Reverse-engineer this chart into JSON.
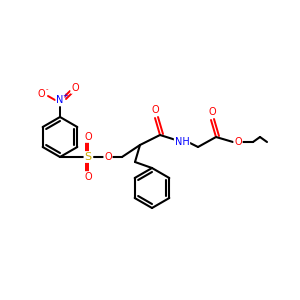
{
  "bg_color": "#ffffff",
  "bond_color": "#000000",
  "atom_colors": {
    "N": "#0000ff",
    "O": "#ff0000",
    "S": "#ccaa00",
    "C": "#000000"
  },
  "figsize": [
    3.0,
    3.0
  ],
  "dpi": 100
}
